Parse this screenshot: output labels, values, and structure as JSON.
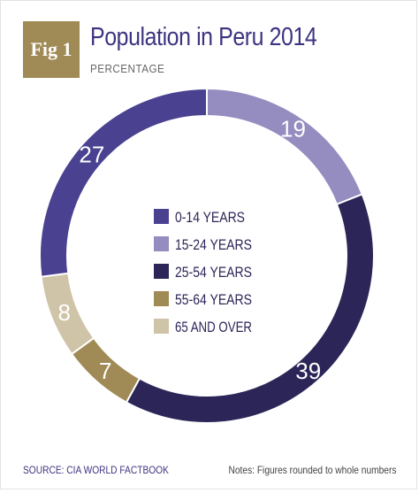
{
  "header": {
    "badge": "Fig 1",
    "title": "Population in Peru 2014",
    "subtitle": "PERCENTAGE"
  },
  "footer": {
    "source": "SOURCE: CIA WORLD FACTBOOK",
    "notes": "Notes: Figures rounded to whole numbers"
  },
  "chart_data": {
    "type": "pie",
    "categories": [
      "0-14 YEARS",
      "15-24 YEARS",
      "25-54 YEARS",
      "55-64 YEARS",
      "65 AND OVER"
    ],
    "values": [
      27,
      19,
      39,
      7,
      8
    ],
    "colors": [
      "#4a4191",
      "#958cc0",
      "#2c2658",
      "#a08a55",
      "#cfc4a7"
    ],
    "title": "Population in Peru 2014",
    "subtitle": "PERCENTAGE",
    "legend": "center",
    "donut": true
  }
}
